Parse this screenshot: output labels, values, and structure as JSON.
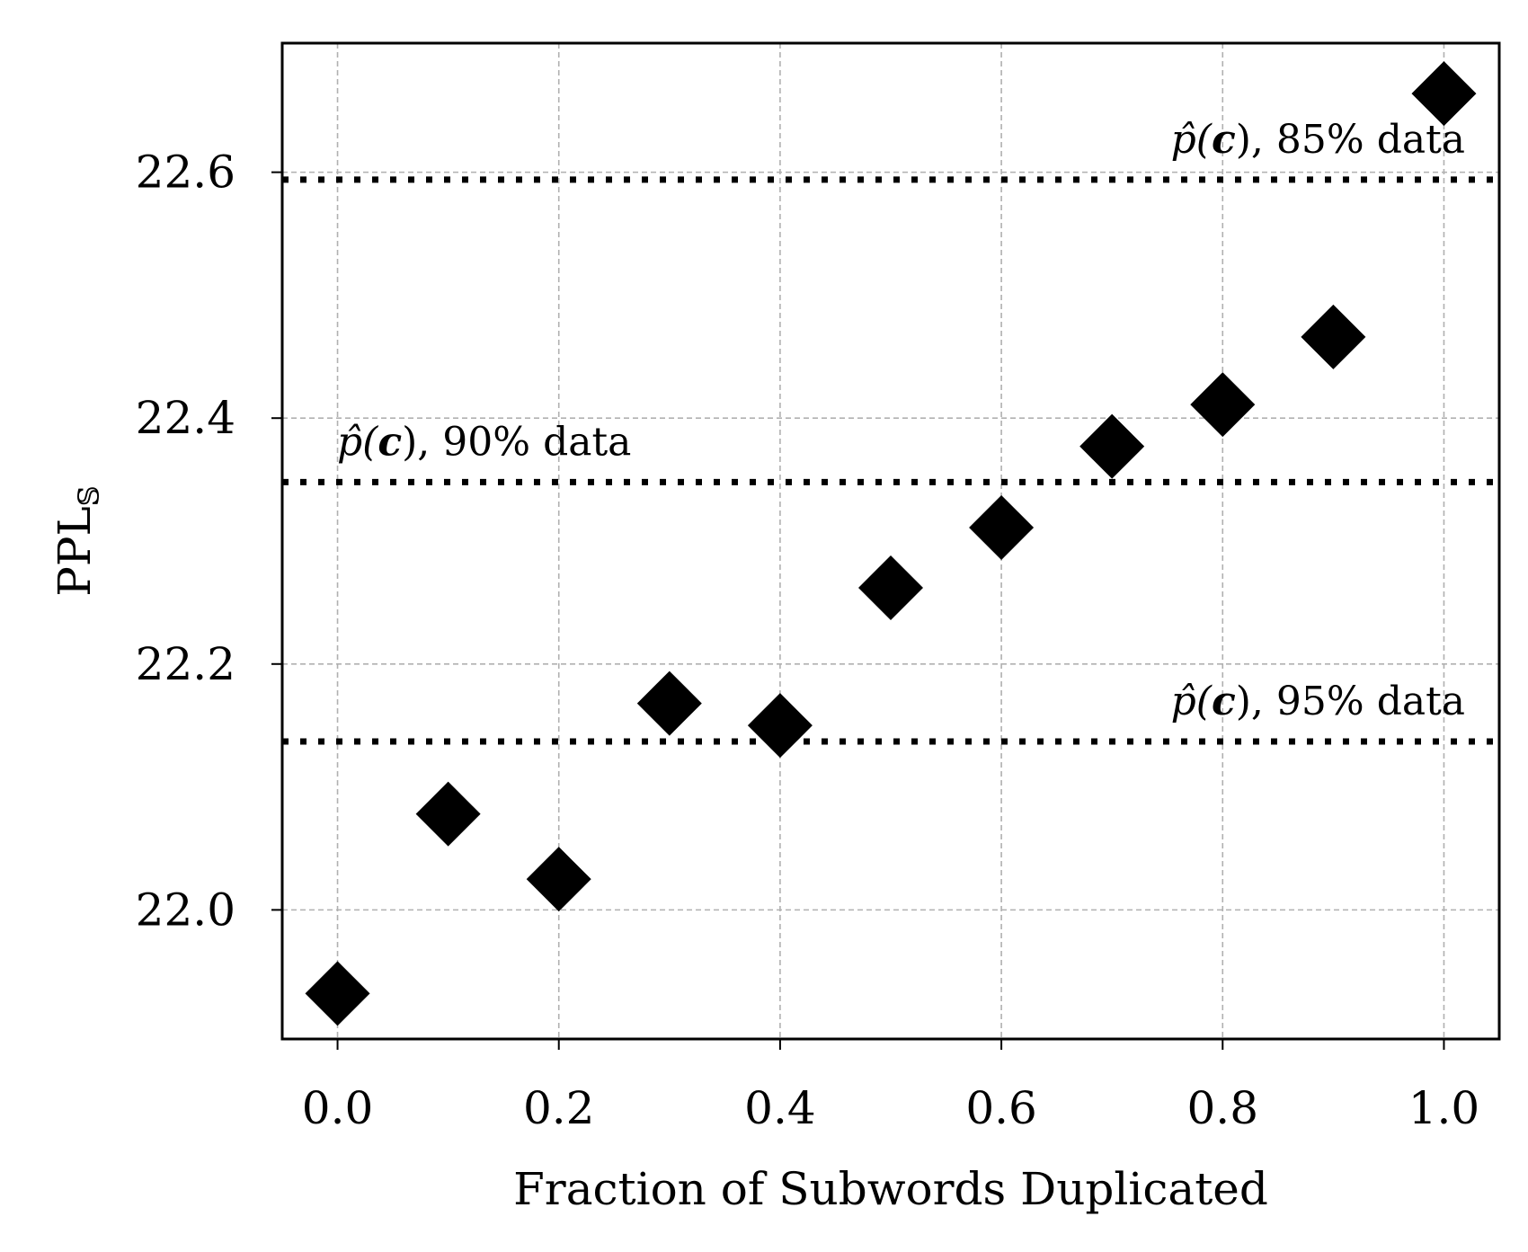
{
  "chart_data": {
    "type": "scatter",
    "xlabel": "Fraction of Subwords Duplicated",
    "ylabel": "PPL",
    "ylabel_subscript": "𝕊",
    "xlim": [
      -0.05,
      1.05
    ],
    "ylim": [
      21.895,
      22.705
    ],
    "xticks": [
      {
        "value": 0.0,
        "label": "0.0"
      },
      {
        "value": 0.2,
        "label": "0.2"
      },
      {
        "value": 0.4,
        "label": "0.4"
      },
      {
        "value": 0.6,
        "label": "0.6"
      },
      {
        "value": 0.8,
        "label": "0.8"
      },
      {
        "value": 1.0,
        "label": "1.0"
      }
    ],
    "yticks": [
      {
        "value": 22.0,
        "label": "22.0"
      },
      {
        "value": 22.2,
        "label": "22.2"
      },
      {
        "value": 22.4,
        "label": "22.4"
      },
      {
        "value": 22.6,
        "label": "22.6"
      }
    ],
    "grid": true,
    "marker": "diamond",
    "marker_color": "#000000",
    "series": [
      {
        "x": [
          0.0,
          0.1,
          0.2,
          0.3,
          0.4,
          0.5,
          0.6,
          0.7,
          0.8,
          0.9,
          1.0
        ],
        "y": [
          21.932,
          22.078,
          22.025,
          22.168,
          22.15,
          22.262,
          22.311,
          22.377,
          22.411,
          22.466,
          22.664
        ]
      }
    ],
    "reference_lines": [
      {
        "y": 22.594,
        "label_prefix": "p̂(",
        "label_bold": "c",
        "label_suffix": "), 85% data",
        "label_position": "top-right"
      },
      {
        "y": 22.348,
        "label_prefix": "p̂(",
        "label_bold": "c",
        "label_suffix": "), 90% data",
        "label_position": "top-left"
      },
      {
        "y": 22.137,
        "label_prefix": "p̂(",
        "label_bold": "c",
        "label_suffix": "), 95% data",
        "label_position": "top-right"
      }
    ]
  }
}
